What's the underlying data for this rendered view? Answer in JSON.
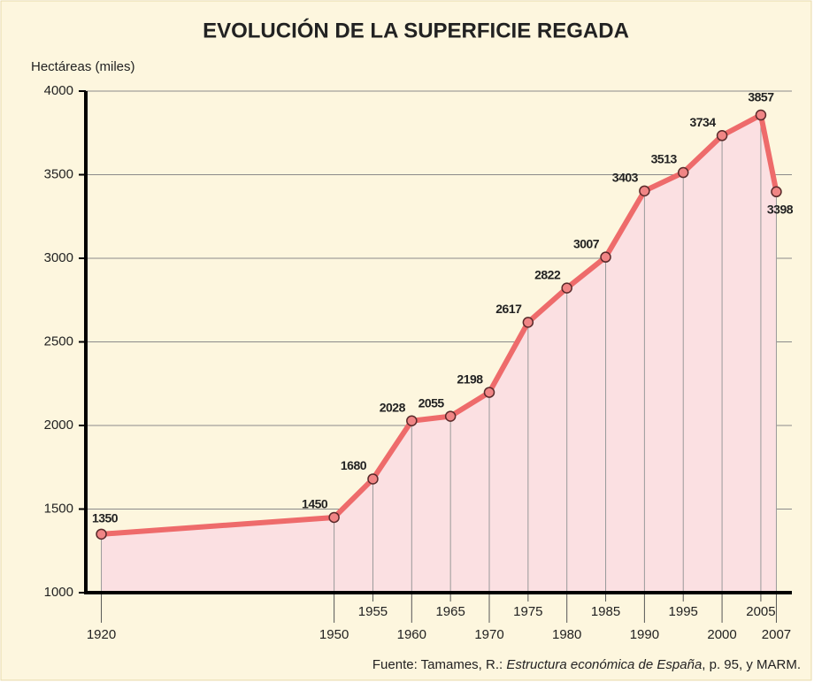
{
  "chart_data": {
    "type": "line",
    "title": "EVOLUCIÓN DE LA SUPERFICIE REGADA",
    "y_label": "Hectáreas (miles)",
    "source": {
      "prefix": "Fuente: Tamames, R.: ",
      "title": "Estructura económica de España",
      "suffix": ", p. 95, y MARM."
    },
    "x": [
      1920,
      1950,
      1955,
      1960,
      1965,
      1970,
      1975,
      1980,
      1985,
      1990,
      1995,
      2000,
      2005,
      2007
    ],
    "series": [
      {
        "name": "Superficie regada",
        "color": "#ee6b6b",
        "values": [
          1350,
          1450,
          1680,
          2028,
          2055,
          2198,
          2617,
          2822,
          3007,
          3403,
          3513,
          3734,
          3857,
          3398
        ]
      }
    ],
    "xlim": [
      1918,
      2009
    ],
    "xticks": [
      1920,
      1950,
      1955,
      1960,
      1965,
      1970,
      1975,
      1980,
      1985,
      1990,
      1995,
      2000,
      2005,
      2007
    ],
    "ylim": [
      1000,
      4000
    ],
    "yticks": [
      1000,
      1500,
      2000,
      2500,
      3000,
      3500,
      4000
    ],
    "grid": true,
    "area": true
  }
}
